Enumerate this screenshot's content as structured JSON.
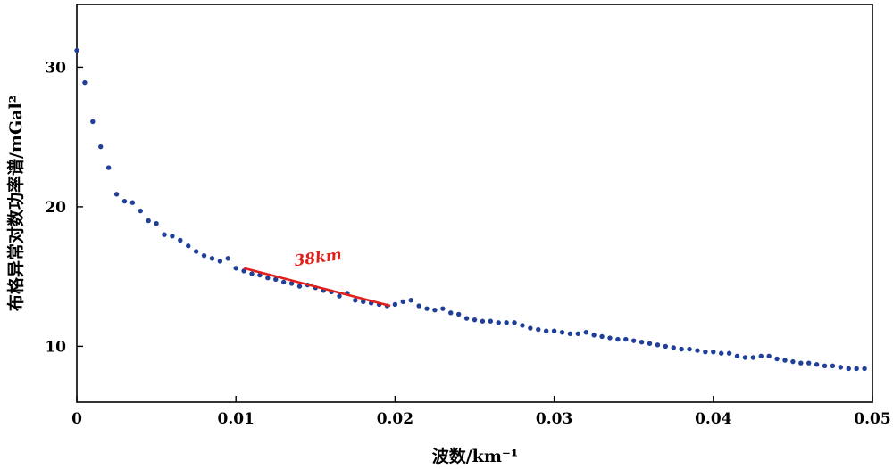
{
  "chart_data": {
    "type": "scatter",
    "xlabel": "波数/km⁻¹",
    "ylabel": "布格异常对数功率谱/mGal²",
    "xlim": [
      0,
      0.05
    ],
    "ylim": [
      6,
      34.5
    ],
    "x_ticks": [
      0,
      0.01,
      0.02,
      0.03,
      0.04,
      0.05
    ],
    "x_tick_labels": [
      "0",
      "0.01",
      "0.02",
      "0.03",
      "0.04",
      "0.05"
    ],
    "y_ticks": [
      10,
      20,
      30
    ],
    "y_tick_labels": [
      "10",
      "20",
      "30"
    ],
    "grid": false,
    "series": [
      {
        "color": "#1f3f99",
        "x": [
          0.0,
          0.0005,
          0.001,
          0.0015,
          0.002,
          0.0025,
          0.003,
          0.0035,
          0.004,
          0.0045,
          0.005,
          0.0055,
          0.006,
          0.0065,
          0.007,
          0.0075,
          0.008,
          0.0085,
          0.009,
          0.0095,
          0.01,
          0.0105,
          0.011,
          0.0115,
          0.012,
          0.0125,
          0.013,
          0.0135,
          0.014,
          0.0145,
          0.015,
          0.0155,
          0.016,
          0.0165,
          0.017,
          0.0175,
          0.018,
          0.0185,
          0.019,
          0.0195,
          0.02,
          0.0205,
          0.021,
          0.0215,
          0.022,
          0.0225,
          0.023,
          0.0235,
          0.024,
          0.0245,
          0.025,
          0.0255,
          0.026,
          0.0265,
          0.027,
          0.0275,
          0.028,
          0.0285,
          0.029,
          0.0295,
          0.03,
          0.0305,
          0.031,
          0.0315,
          0.032,
          0.0325,
          0.033,
          0.0335,
          0.034,
          0.0345,
          0.035,
          0.0355,
          0.036,
          0.0365,
          0.037,
          0.0375,
          0.038,
          0.0385,
          0.039,
          0.0395,
          0.04,
          0.0405,
          0.041,
          0.0415,
          0.042,
          0.0425,
          0.043,
          0.0435,
          0.044,
          0.0445,
          0.045,
          0.0455,
          0.046,
          0.0465,
          0.047,
          0.0475,
          0.048,
          0.0485,
          0.049,
          0.0495
        ],
        "y": [
          31.2,
          28.9,
          26.1,
          24.3,
          22.8,
          20.9,
          20.4,
          20.3,
          19.7,
          19.0,
          18.8,
          18.0,
          17.9,
          17.6,
          17.2,
          16.8,
          16.5,
          16.3,
          16.1,
          16.3,
          15.6,
          15.4,
          15.2,
          15.1,
          14.9,
          14.8,
          14.6,
          14.5,
          14.3,
          14.4,
          14.2,
          14.0,
          13.9,
          13.6,
          13.8,
          13.3,
          13.2,
          13.1,
          13.0,
          12.9,
          13.0,
          13.2,
          13.3,
          12.9,
          12.7,
          12.6,
          12.7,
          12.4,
          12.3,
          12.0,
          11.9,
          11.8,
          11.8,
          11.7,
          11.7,
          11.7,
          11.5,
          11.3,
          11.2,
          11.1,
          11.1,
          11.0,
          10.9,
          10.9,
          11.0,
          10.8,
          10.7,
          10.6,
          10.5,
          10.5,
          10.4,
          10.3,
          10.2,
          10.1,
          10.0,
          9.9,
          9.8,
          9.8,
          9.7,
          9.6,
          9.6,
          9.5,
          9.5,
          9.3,
          9.2,
          9.2,
          9.3,
          9.3,
          9.1,
          9.0,
          8.9,
          8.8,
          8.8,
          8.7,
          8.6,
          8.6,
          8.5,
          8.4,
          8.4,
          8.4
        ]
      }
    ],
    "fit_line": {
      "x": [
        0.0105,
        0.0197
      ],
      "y": [
        15.6,
        12.9
      ],
      "color": "#e0201a"
    },
    "annotation": {
      "text": "38km",
      "x": 0.0152,
      "y": 16.0,
      "color": "#e0201a"
    }
  }
}
